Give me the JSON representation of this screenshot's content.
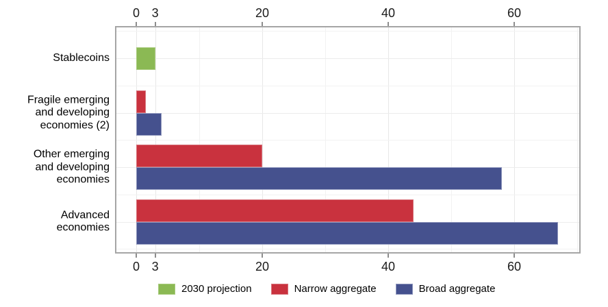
{
  "chart_data": {
    "type": "bar",
    "orientation": "horizontal",
    "title": "",
    "xlabel": "",
    "ylabel": "",
    "xlim": [
      0,
      70.5
    ],
    "grid": true,
    "legend_position": "bottom",
    "axis_ticks_shown_on": "top-and-bottom",
    "x_major_ticks": [
      0,
      3,
      20,
      40,
      60
    ],
    "x_minor_gridlines": [
      10,
      30,
      50,
      70
    ],
    "categories": [
      "Stablecoins",
      "Fragile emerging\nand developing\neconomies (2)",
      "Other emerging\nand developing\neconomies",
      "Advanced\neconomies"
    ],
    "series": [
      {
        "name": "2030 projection",
        "color": "#8bb954",
        "border_color": "#a9cb7e",
        "values": [
          3,
          null,
          null,
          null
        ]
      },
      {
        "name": "Narrow aggregate",
        "color": "#c9323e",
        "border_color": "#d7747c",
        "values": [
          null,
          1.5,
          20,
          44
        ]
      },
      {
        "name": "Broad aggregate",
        "color": "#45518e",
        "border_color": "#8f97bd",
        "values": [
          null,
          4,
          58,
          67
        ]
      }
    ],
    "colors": {
      "panel_border": "#a5a5a5",
      "grid_major": "#e7e7e7",
      "grid_minor": "#f2f2f2",
      "tick": "#8c8c8c",
      "text": "#1a1a1a",
      "background": "#ffffff"
    }
  }
}
